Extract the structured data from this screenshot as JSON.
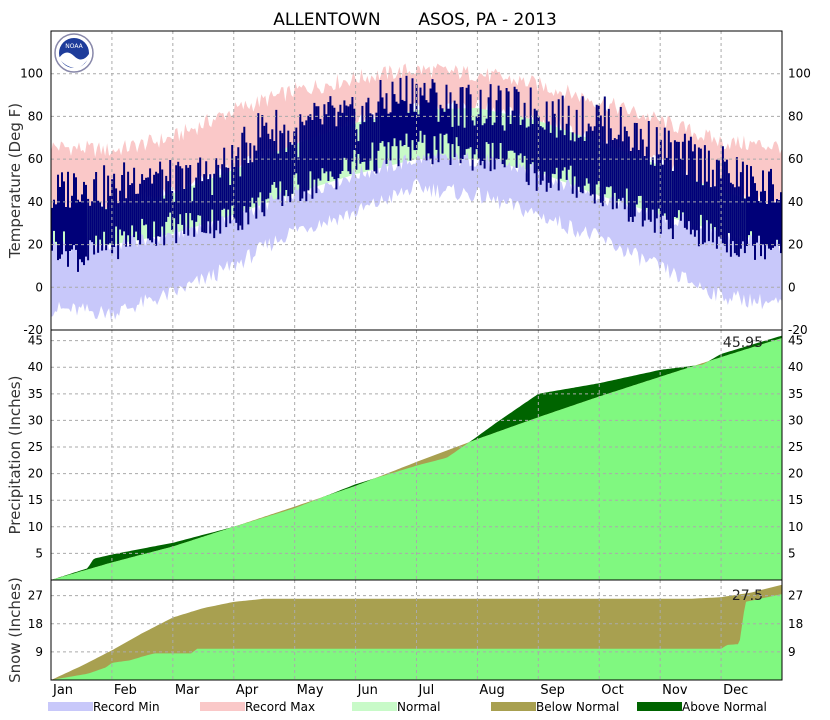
{
  "chart_data": {
    "type": "area",
    "title": "ALLENTOWN       ASOS, PA - 2013",
    "months": [
      "Jan",
      "Feb",
      "Mar",
      "Apr",
      "May",
      "Jun",
      "Jul",
      "Aug",
      "Sep",
      "Oct",
      "Nov",
      "Dec"
    ],
    "panels": [
      {
        "name": "temperature",
        "ylabel": "Temperature (Deg F)",
        "ylim": [
          -20,
          120
        ],
        "ticks": [
          -20,
          0,
          20,
          40,
          60,
          80,
          100
        ],
        "series": [
          {
            "name": "Record Max",
            "x_month": [
              0,
              1,
              2,
              3,
              4,
              5,
              6,
              7,
              8,
              9,
              10,
              11,
              12
            ],
            "values": [
              66,
              64,
              70,
              83,
              92,
              98,
              102,
              100,
              95,
              87,
              78,
              68,
              66
            ]
          },
          {
            "name": "Normal High",
            "x_month": [
              0,
              1,
              2,
              3,
              4,
              5,
              6,
              7,
              8,
              9,
              10,
              11,
              12
            ],
            "values": [
              36,
              37,
              44,
              55,
              67,
              77,
              83,
              84,
              78,
              68,
              57,
              45,
              37
            ]
          },
          {
            "name": "Normal Low",
            "x_month": [
              0,
              1,
              2,
              3,
              4,
              5,
              6,
              7,
              8,
              9,
              10,
              11,
              12
            ],
            "values": [
              20,
              20,
              25,
              34,
              44,
              53,
              60,
              60,
              54,
              43,
              34,
              26,
              20
            ]
          },
          {
            "name": "Record Min",
            "x_month": [
              0,
              1,
              2,
              3,
              4,
              5,
              6,
              7,
              8,
              9,
              10,
              11,
              12
            ],
            "values": [
              -10,
              -12,
              -3,
              10,
              27,
              35,
              47,
              43,
              34,
              23,
              9,
              -4,
              -8
            ]
          },
          {
            "name": "Observed High",
            "x_month": [
              0,
              0.5,
              1,
              1.5,
              2,
              2.5,
              3,
              3.5,
              4,
              4.5,
              5,
              5.5,
              6,
              6.5,
              7,
              7.5,
              8,
              8.5,
              9,
              9.5,
              10,
              10.5,
              11,
              11.5,
              12
            ],
            "values": [
              42,
              50,
              45,
              55,
              48,
              52,
              58,
              76,
              70,
              80,
              78,
              88,
              92,
              86,
              85,
              83,
              84,
              78,
              80,
              72,
              66,
              60,
              56,
              48,
              45
            ]
          },
          {
            "name": "Observed Low",
            "x_month": [
              0,
              0.5,
              1,
              1.5,
              2,
              2.5,
              3,
              3.5,
              4,
              4.5,
              5,
              5.5,
              6,
              6.5,
              7,
              7.5,
              8,
              8.5,
              9,
              9.5,
              10,
              10.5,
              11,
              11.5,
              12
            ],
            "values": [
              22,
              14,
              20,
              26,
              28,
              30,
              32,
              40,
              46,
              50,
              58,
              62,
              66,
              64,
              62,
              60,
              52,
              50,
              45,
              38,
              30,
              28,
              22,
              20,
              22
            ]
          }
        ]
      },
      {
        "name": "precipitation",
        "ylabel": "Precipitation (Inches)",
        "ylim": [
          0,
          47
        ],
        "ticks": [
          5,
          10,
          15,
          20,
          25,
          30,
          35,
          40,
          45
        ],
        "total_label": "45.95",
        "series": [
          {
            "name": "Observed",
            "x_month": [
              0,
              0.6,
              0.7,
              1,
              2,
              3,
              4,
              5,
              6,
              6.5,
              7,
              7.3,
              8,
              8.5,
              9,
              10,
              10.7,
              11,
              12
            ],
            "values": [
              0,
              2.2,
              4.0,
              4.8,
              7.0,
              10.0,
              13.5,
              18.0,
              21.5,
              23.0,
              27.0,
              29.5,
              35.0,
              36.0,
              37.0,
              39.5,
              40.5,
              42.5,
              45.95
            ]
          },
          {
            "name": "Normal",
            "x_month": [
              0,
              1,
              2,
              3,
              4,
              5,
              6,
              7,
              8,
              9,
              10,
              11,
              12
            ],
            "values": [
              0,
              3.3,
              6.3,
              10.0,
              13.8,
              17.7,
              22.2,
              26.5,
              30.6,
              34.5,
              38.2,
              41.9,
              45.5
            ]
          }
        ]
      },
      {
        "name": "snow",
        "ylabel": "Snow (Inches)",
        "ylim": [
          0,
          32
        ],
        "ticks": [
          9,
          18,
          27
        ],
        "total_label": "27.5",
        "series": [
          {
            "name": "Observed",
            "x_month": [
              0,
              0.6,
              0.9,
              1.0,
              1.3,
              1.5,
              1.7,
              2.3,
              2.4,
              11.0,
              11.1,
              11.3,
              11.4,
              12
            ],
            "values": [
              0,
              2.0,
              4.0,
              5.5,
              6.3,
              7.5,
              8.5,
              8.5,
              10.0,
              10.0,
              11.2,
              11.5,
              25.0,
              27.5
            ]
          },
          {
            "name": "Normal",
            "x_month": [
              0,
              0.5,
              1,
              1.5,
              2,
              2.5,
              3,
              3.5,
              10.5,
              11,
              11.5,
              12
            ],
            "values": [
              0,
              4.5,
              9.5,
              15.0,
              20.0,
              23.0,
              25.0,
              26.0,
              26.0,
              26.5,
              28.0,
              30.5
            ]
          }
        ]
      }
    ],
    "legend": [
      "Record Min",
      "Record Max",
      "Normal",
      "Below Normal",
      "Above Normal"
    ],
    "colors": {
      "record_min": "#c8c8fa",
      "record_max": "#fac8c8",
      "normal": "#c8fac8",
      "observed": "#000078",
      "below_normal": "#a8a050",
      "above_normal": "#006400",
      "bright_green": "#80f880",
      "grid": "#aaaaaa"
    }
  }
}
